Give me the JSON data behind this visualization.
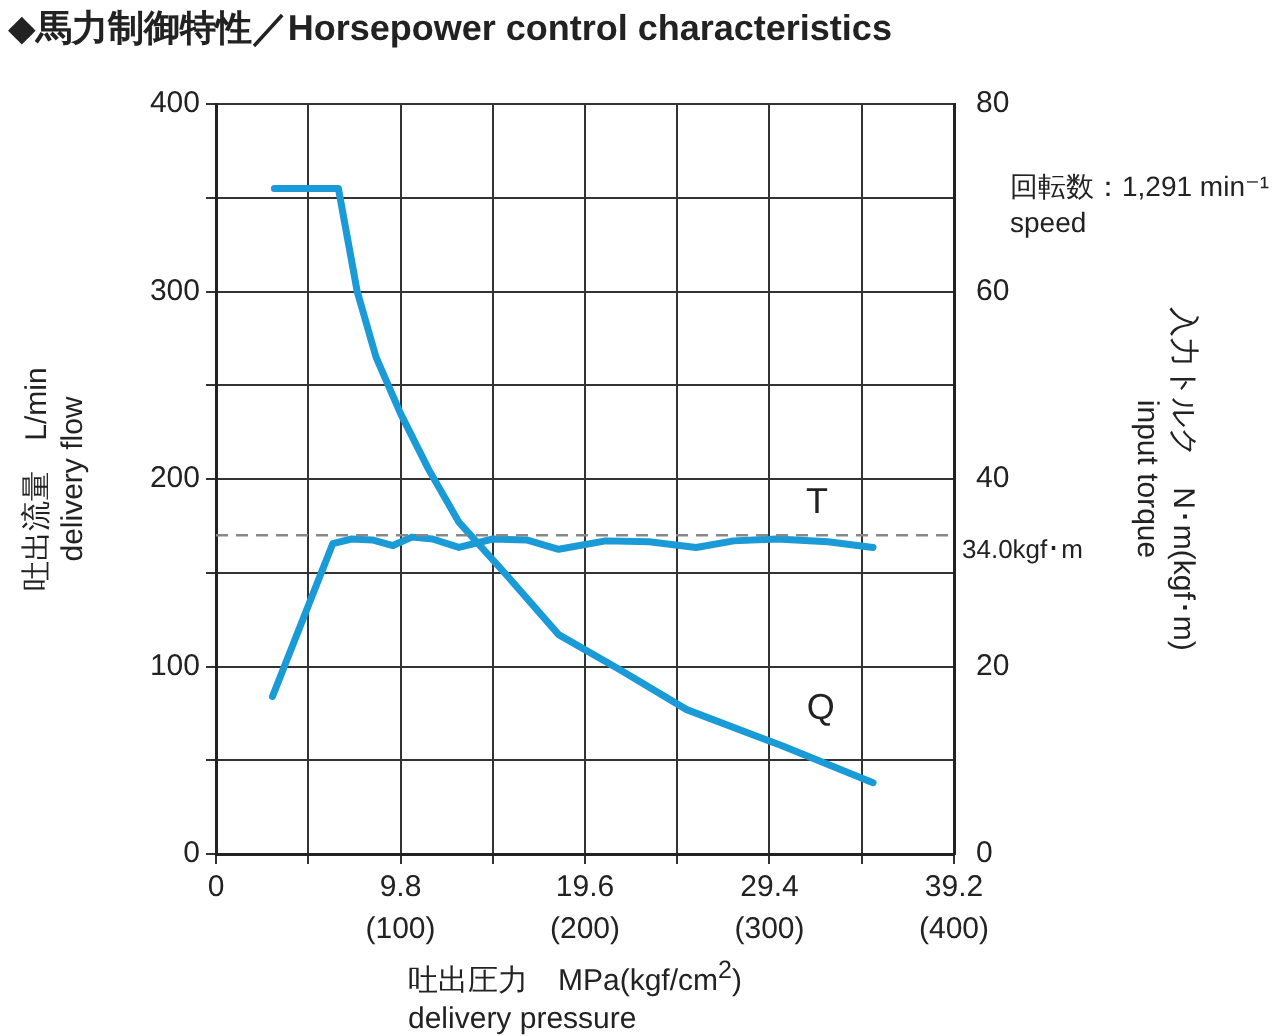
{
  "chart_data": {
    "type": "line",
    "title": "◆馬力制御特性／Horsepower control characteristics",
    "xlabel": "吐出圧力　MPa(kgf/cm$^{2}$)\ndelivery pressure",
    "ylabel": "吐出流量　L/min\ndelivery flow",
    "y2label": "入力トルク　N･m(kgf･m)\ninput torque",
    "xlim": [
      0,
      39.2
    ],
    "xticks": [
      0,
      {
        "value": 4.9,
        "label": null
      },
      9.8,
      {
        "value": 14.7,
        "label": null
      },
      19.6,
      {
        "value": 24.5,
        "label": null
      },
      29.4,
      {
        "value": 34.3,
        "label": null
      },
      39.2
    ],
    "x2lim": [
      0,
      400
    ],
    "x2ticks": [
      {
        "value": 100,
        "label": "(100)"
      },
      {
        "value": 200,
        "label": "(200)"
      },
      {
        "value": 300,
        "label": "(300)"
      },
      {
        "value": 400,
        "label": "(400)"
      }
    ],
    "ylim": [
      0,
      400
    ],
    "yticks": [
      0,
      {
        "value": 50,
        "label": null
      },
      100,
      {
        "value": 150,
        "label": null
      },
      200,
      {
        "value": 250,
        "label": null
      },
      300,
      {
        "value": 350,
        "label": null
      },
      400
    ],
    "y2lim": [
      0,
      80
    ],
    "y2ticks": [
      0,
      20,
      40,
      60,
      80
    ],
    "grid": true,
    "legend": false,
    "marker": "none",
    "line_style": "solid",
    "series": [
      {
        "name": "Q",
        "color": "#1a9ad6",
        "x": [
          3.1,
          6.5,
          7.5,
          8.5,
          9.8,
          11.3,
          12.9,
          15.5,
          18.2,
          21.5,
          25,
          30,
          34.9
        ],
        "values": [
          355,
          355,
          300,
          265,
          235,
          205,
          177,
          148,
          117,
          98,
          77,
          58,
          38
        ]
      },
      {
        "name": "T",
        "color": "#1a9ad6",
        "axis": "y2",
        "x": [
          3.0,
          6.2,
          7.2,
          8.3,
          9.4,
          10.4,
          11.5,
          12.9,
          14.7,
          16.5,
          18.2,
          20.7,
          23,
          25.5,
          27.5,
          29.8,
          32.5,
          34.9
        ],
        "values": [
          16.8,
          33.1,
          33.6,
          33.5,
          32.9,
          33.8,
          33.6,
          32.7,
          33.6,
          33.5,
          32.5,
          33.4,
          33.3,
          32.7,
          33.4,
          33.6,
          33.3,
          32.7
        ]
      }
    ],
    "ref_lines": [
      {
        "axis": "y2",
        "value": 34.0,
        "label": "34.0kgf･m",
        "color": "#888888",
        "line_style": "dashed"
      }
    ],
    "annotations": [
      "回転数：1,291 min⁻¹\nspeed"
    ]
  }
}
